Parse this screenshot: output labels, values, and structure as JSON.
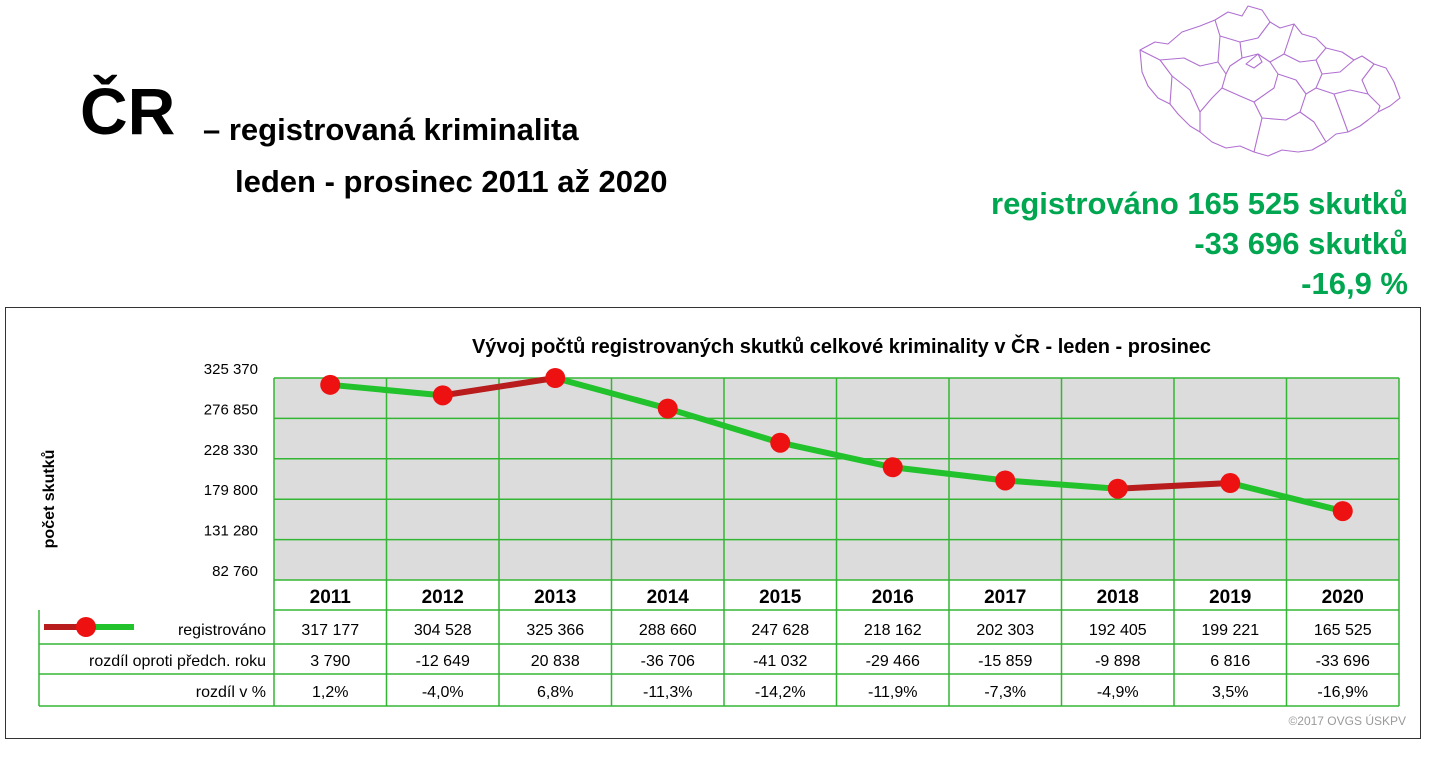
{
  "header": {
    "country": "ČR",
    "subtitle_line1": "– registrovaná kriminalita",
    "subtitle_line2": "leden - prosinec 2011 až 2020"
  },
  "summary": {
    "line1": "registrováno 165 525 skutků",
    "line2": "-33 696 skutků",
    "line3": "-16,9 %",
    "color": "#00a650"
  },
  "map": {
    "icon": "czech-regions-map",
    "stroke_color": "#b070d0"
  },
  "colors": {
    "plot_bg": "#dcdcdc",
    "grid": "#33b633",
    "decrease_line": "#22c22c",
    "increase_line": "#b81c1c",
    "marker": "#ee1111"
  },
  "chart_data": {
    "type": "line",
    "title": "Vývoj počtů registrovaných skutků celkové kriminality v ČR - leden - prosinec",
    "ylabel": "počet skutků",
    "xlabel": "",
    "categories": [
      "2011",
      "2012",
      "2013",
      "2014",
      "2015",
      "2016",
      "2017",
      "2018",
      "2019",
      "2020"
    ],
    "ylim": [
      82760,
      325370
    ],
    "yticks": [
      325370,
      276850,
      228330,
      179800,
      131280,
      82760
    ],
    "ytick_labels": [
      "325 370",
      "276 850",
      "228 330",
      "179 800",
      "131 280",
      "82 760"
    ],
    "grid": true,
    "series": [
      {
        "name": "registrováno",
        "values": [
          317177,
          304528,
          325366,
          288660,
          247628,
          218162,
          202303,
          192405,
          199221,
          165525
        ]
      }
    ],
    "table": {
      "rows": [
        {
          "label": "registrováno",
          "cells": [
            "317 177",
            "304 528",
            "325 366",
            "288 660",
            "247 628",
            "218 162",
            "202 303",
            "192 405",
            "199 221",
            "165 525"
          ]
        },
        {
          "label": "rozdíl oproti předch. roku",
          "cells": [
            "3 790",
            "-12 649",
            "20 838",
            "-36 706",
            "-41 032",
            "-29 466",
            "-15 859",
            "-9 898",
            "6 816",
            "-33 696"
          ]
        },
        {
          "label": "rozdíl v %",
          "cells": [
            "1,2%",
            "-4,0%",
            "6,8%",
            "-11,3%",
            "-14,2%",
            "-11,9%",
            "-7,3%",
            "-4,9%",
            "3,5%",
            "-16,9%"
          ]
        }
      ]
    },
    "copyright": "©2017 OVGS ÚSKPV"
  }
}
